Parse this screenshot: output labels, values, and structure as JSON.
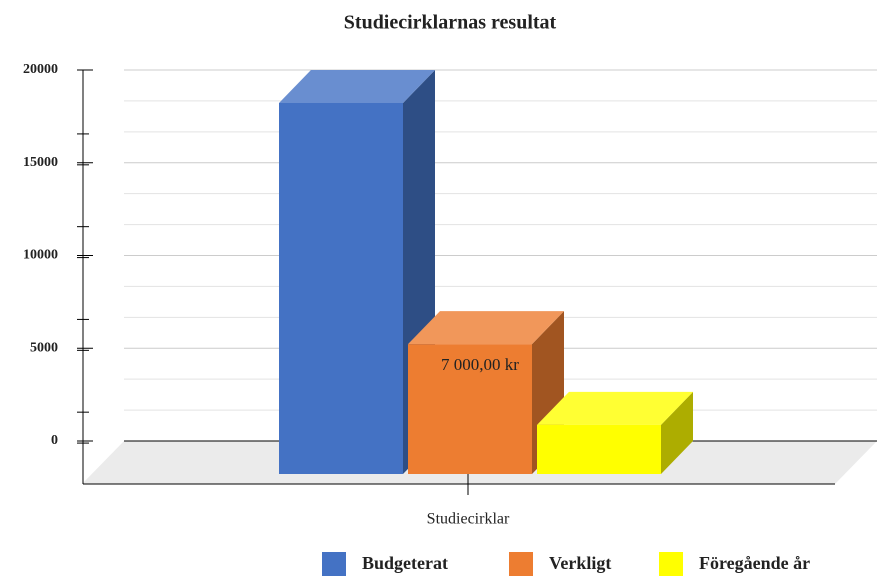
{
  "chart_data": {
    "type": "bar3d",
    "title": "Studiecirklarnas resultat",
    "categories": [
      "Studiecirklar"
    ],
    "series": [
      {
        "name": "Budgeterat",
        "color": "#4472c4",
        "values": [
          20000
        ]
      },
      {
        "name": "Verkligt",
        "color": "#ed7d31",
        "values": [
          7000
        ],
        "value_labels": [
          "7 000,00 kr"
        ]
      },
      {
        "name": "Föregående år",
        "color": "#ffff00",
        "values": [
          2650
        ]
      }
    ],
    "ylim": [
      0,
      20000
    ],
    "yticks": [
      0,
      5000,
      10000,
      15000,
      20000
    ],
    "grid": true,
    "legend": "bottom"
  }
}
